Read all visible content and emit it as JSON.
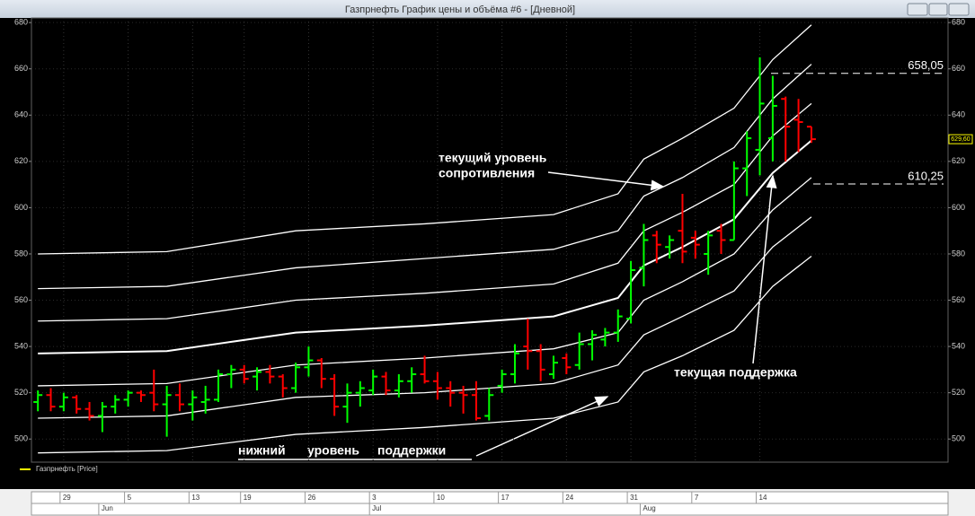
{
  "window_title": "Газпрнефть График цены и объёма #6 - [Дневной]",
  "chart_data": {
    "type": "ohlc",
    "name": "Газпрнефть [Price]",
    "legend_color": "#ffff00",
    "up_color": "#00ff00",
    "down_color": "#ff0000",
    "ohlc": [
      [
        516,
        521,
        512,
        519
      ],
      [
        519,
        522,
        512,
        514
      ],
      [
        514,
        520,
        512,
        518
      ],
      [
        518,
        519,
        511,
        513
      ],
      [
        513,
        516,
        508,
        510
      ],
      [
        510,
        516,
        503,
        514
      ],
      [
        514,
        519,
        511,
        517
      ],
      [
        517,
        521,
        514,
        520
      ],
      [
        520,
        521,
        516,
        519
      ],
      [
        520,
        530,
        512,
        515
      ],
      [
        515,
        523,
        501,
        519
      ],
      [
        519,
        524,
        512,
        515
      ],
      [
        515,
        521,
        508,
        518
      ],
      [
        516,
        523,
        511,
        517
      ],
      [
        517,
        530,
        516,
        528
      ],
      [
        528,
        532,
        522,
        530
      ],
      [
        530,
        532,
        524,
        526
      ],
      [
        527,
        531,
        521,
        529
      ],
      [
        529,
        532,
        524,
        527
      ],
      [
        527,
        528,
        518,
        522
      ],
      [
        522,
        533,
        520,
        531
      ],
      [
        531,
        540,
        527,
        534
      ],
      [
        534,
        535,
        522,
        526
      ],
      [
        526,
        528,
        510,
        514
      ],
      [
        514,
        524,
        507,
        520
      ],
      [
        520,
        525,
        514,
        522
      ],
      [
        521,
        530,
        519,
        527
      ],
      [
        527,
        529,
        519,
        521
      ],
      [
        521,
        528,
        518,
        525
      ],
      [
        525,
        531,
        520,
        528
      ],
      [
        528,
        536,
        524,
        525
      ],
      [
        525,
        529,
        517,
        522
      ],
      [
        522,
        525,
        514,
        520
      ],
      [
        520,
        523,
        511,
        519
      ],
      [
        519,
        525,
        508,
        509
      ],
      [
        510,
        522,
        508,
        519
      ],
      [
        523,
        530,
        520,
        528
      ],
      [
        528,
        541,
        524,
        537
      ],
      [
        540,
        552,
        530,
        538
      ],
      [
        538,
        541,
        525,
        530
      ],
      [
        528,
        536,
        526,
        533
      ],
      [
        535,
        537,
        528,
        531
      ],
      [
        532,
        546,
        530,
        541
      ],
      [
        541,
        547,
        534,
        545
      ],
      [
        543,
        548,
        540,
        546
      ],
      [
        546,
        556,
        542,
        553
      ],
      [
        552,
        577,
        550,
        573
      ],
      [
        574,
        593,
        566,
        586
      ],
      [
        588,
        590,
        576,
        584
      ],
      [
        583,
        588,
        578,
        586
      ],
      [
        590,
        606,
        576,
        581
      ],
      [
        587,
        590,
        578,
        584
      ],
      [
        580,
        590,
        571,
        588
      ],
      [
        590,
        593,
        580,
        586
      ],
      [
        586,
        620,
        586,
        617
      ],
      [
        617,
        633,
        605,
        630
      ],
      [
        625,
        665,
        614,
        645
      ],
      [
        630,
        657,
        620,
        644
      ],
      [
        647,
        648,
        620,
        635
      ],
      [
        638,
        647,
        624,
        637
      ],
      [
        635,
        635,
        628,
        629.6
      ]
    ],
    "bands": {
      "x": [
        0,
        10,
        20,
        30,
        40,
        45,
        47,
        50,
        54,
        57,
        60
      ],
      "series": [
        {
          "color": "#ffffff",
          "values": [
            580,
            581,
            590,
            593,
            597,
            606,
            621,
            630,
            643,
            664,
            679
          ]
        },
        {
          "color": "#ffffff",
          "values": [
            565,
            566,
            574,
            578,
            582,
            590,
            605,
            613,
            626,
            647,
            662
          ]
        },
        {
          "color": "#ffffff",
          "values": [
            551,
            552,
            560,
            563,
            567,
            576,
            590,
            598,
            610,
            631,
            645
          ]
        },
        {
          "color": "#ffffff",
          "values": [
            537,
            538,
            546,
            549,
            553,
            561,
            575,
            583,
            595,
            615,
            629
          ]
        },
        {
          "color": "#ffffff",
          "values": [
            523,
            524,
            532,
            535,
            539,
            546,
            560,
            568,
            580,
            599,
            613
          ]
        },
        {
          "color": "#ffffff",
          "values": [
            509,
            510,
            518,
            520,
            524,
            532,
            545,
            553,
            564,
            583,
            596
          ]
        },
        {
          "color": "#ffffff",
          "values": [
            494,
            495,
            502,
            505,
            509,
            516,
            529,
            536,
            547,
            566,
            579
          ]
        }
      ]
    },
    "xlim": [
      -0.5,
      70.6
    ],
    "xticks": [
      {
        "value": 2,
        "label": "29"
      },
      {
        "value": 7,
        "label": "5"
      },
      {
        "value": 12,
        "label": "13"
      },
      {
        "value": 16,
        "label": "19"
      },
      {
        "value": 21,
        "label": "26"
      },
      {
        "value": 26,
        "label": "3"
      },
      {
        "value": 31,
        "label": "10"
      },
      {
        "value": 36,
        "label": "17"
      },
      {
        "value": 41,
        "label": "24"
      },
      {
        "value": 46,
        "label": "31"
      },
      {
        "value": 51,
        "label": "7"
      },
      {
        "value": 56,
        "label": "14"
      }
    ],
    "months": [
      {
        "value": 5,
        "label": "Jun"
      },
      {
        "value": 26,
        "label": "Jul"
      },
      {
        "value": 47,
        "label": "Aug"
      }
    ],
    "ylim": [
      490,
      682
    ],
    "yticks": [
      500,
      520,
      540,
      560,
      580,
      600,
      620,
      640,
      660,
      680
    ],
    "grid": true,
    "levels": [
      {
        "value": 658.05,
        "label": "658,05"
      },
      {
        "value": 610.25,
        "label": "610,25"
      }
    ],
    "last_price": {
      "value": 629.6,
      "label": "629,60"
    },
    "annotations": [
      "текущий уровень",
      "сопротивления",
      "текущая поддержка",
      "нижний",
      "уровень",
      "поддержки"
    ]
  }
}
